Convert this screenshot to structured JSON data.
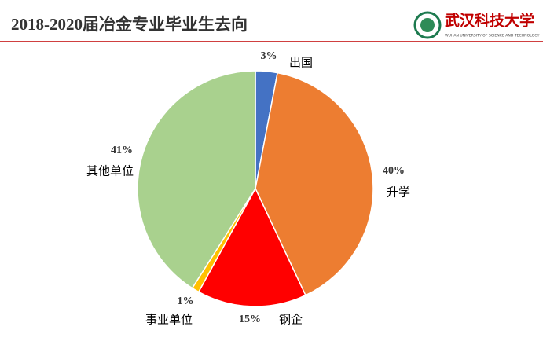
{
  "chart_data": {
    "type": "pie",
    "title": "2018-2020届冶金专业毕业生去向",
    "categories": [
      "出国",
      "升学",
      "钢企",
      "事业单位",
      "其他单位"
    ],
    "values": [
      3,
      40,
      15,
      1,
      41
    ],
    "value_labels": [
      "3%",
      "40%",
      "15%",
      "1%",
      "41%"
    ],
    "colors": [
      "#4472c4",
      "#ed7d31",
      "#ff0000",
      "#ffc000",
      "#a9d18e"
    ]
  },
  "logo": {
    "name": "武汉科技大学",
    "subtitle": "WUHAN UNIVERSITY OF SCIENCE AND TECHNOLOGY"
  }
}
